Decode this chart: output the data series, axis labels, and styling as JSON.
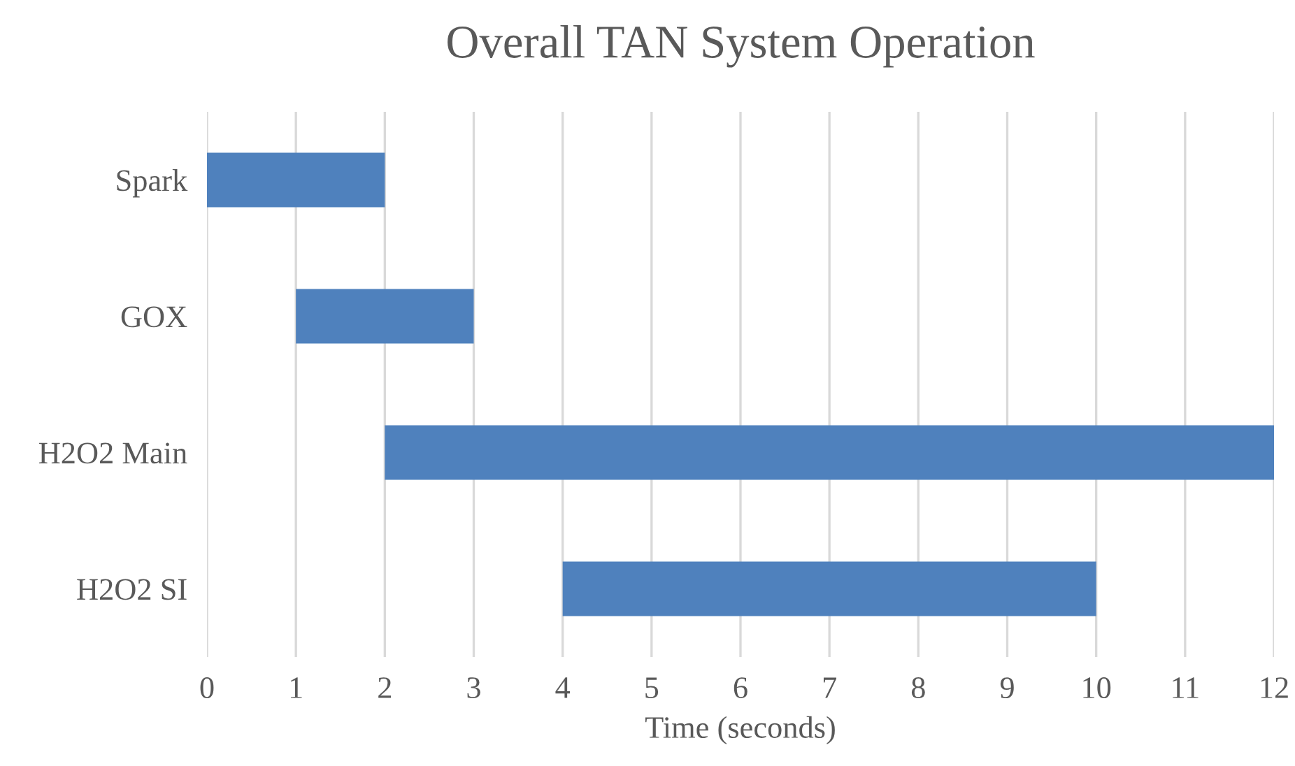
{
  "chart_data": {
    "type": "bar",
    "orientation": "horizontal",
    "title": "Overall TAN System Operation",
    "xlabel": "Time (seconds)",
    "categories": [
      "Spark",
      "GOX",
      "H2O2 Main",
      "H2O2 SI"
    ],
    "base": [
      0,
      1,
      2,
      4
    ],
    "values": [
      2,
      2,
      10,
      6
    ],
    "color": "#4f81bd",
    "xlim": [
      0,
      12
    ],
    "xticks": [
      0,
      1,
      2,
      3,
      4,
      5,
      6,
      7,
      8,
      9,
      10,
      11,
      12
    ],
    "grid": "x"
  }
}
